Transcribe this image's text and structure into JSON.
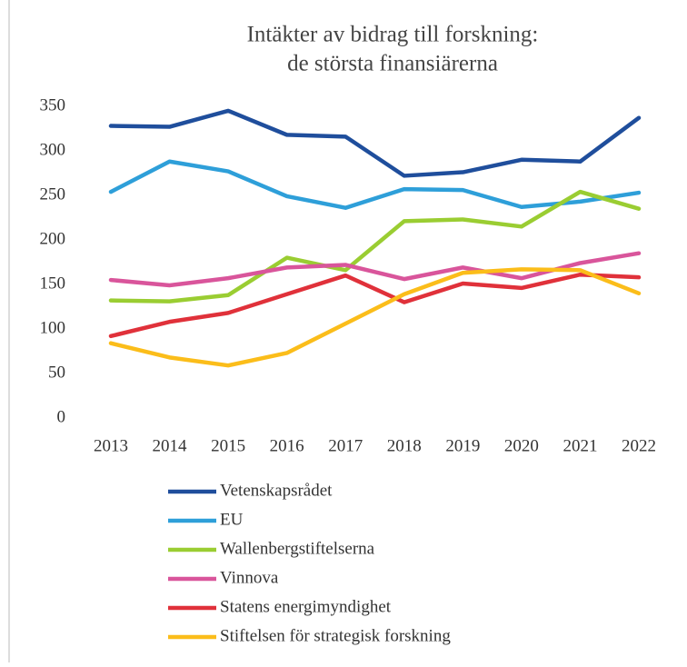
{
  "chart_data": {
    "type": "line",
    "title": [
      "Intäkter av bidrag till forskning:",
      "de största finansiärerna"
    ],
    "categories": [
      "2013",
      "2014",
      "2015",
      "2016",
      "2017",
      "2018",
      "2019",
      "2020",
      "2021",
      "2022"
    ],
    "series": [
      {
        "name": "Vetenskapsrådet",
        "color": "#1f4e9c",
        "values": [
          328,
          327,
          345,
          318,
          316,
          272,
          276,
          290,
          288,
          337
        ]
      },
      {
        "name": "EU",
        "color": "#2e9fd9",
        "values": [
          254,
          288,
          277,
          249,
          236,
          257,
          256,
          237,
          243,
          253
        ]
      },
      {
        "name": "Wallenbergstiftelserna",
        "color": "#9acd32",
        "values": [
          132,
          131,
          138,
          180,
          166,
          221,
          223,
          215,
          254,
          235
        ]
      },
      {
        "name": "Vinnova",
        "color": "#d9559b",
        "values": [
          155,
          149,
          157,
          169,
          172,
          156,
          169,
          157,
          174,
          185
        ]
      },
      {
        "name": "Statens energimyndighet",
        "color": "#e0313a",
        "values": [
          92,
          108,
          118,
          139,
          160,
          130,
          151,
          146,
          161,
          158
        ]
      },
      {
        "name": "Stiftelsen för strategisk forskning",
        "color": "#fbbd1a",
        "values": [
          84,
          68,
          59,
          73,
          106,
          139,
          163,
          167,
          166,
          140
        ]
      }
    ],
    "ylim": [
      0,
      350
    ],
    "yticks": [
      0,
      50,
      100,
      150,
      200,
      250,
      300,
      350
    ],
    "grid": false,
    "legend": "bottom"
  }
}
